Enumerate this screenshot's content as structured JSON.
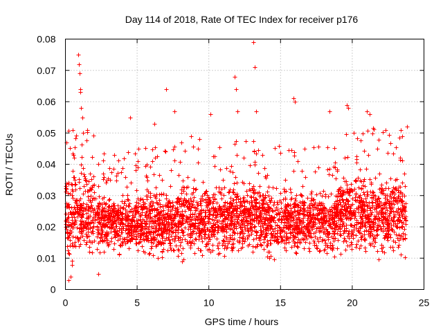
{
  "chart_data": {
    "type": "scatter",
    "title": "Day 114 of 2018, Rate Of TEC Index for receiver p176",
    "xlabel": "GPS time / hours",
    "ylabel": "ROTI / TECUs",
    "xlim": [
      0,
      25
    ],
    "ylim": [
      0,
      0.08
    ],
    "xticks": [
      0,
      5,
      10,
      15,
      20,
      25
    ],
    "xtick_labels": [
      "0",
      "5",
      "10",
      "15",
      "20",
      "25"
    ],
    "yticks": [
      0,
      0.01,
      0.02,
      0.03,
      0.04,
      0.05,
      0.06,
      0.07,
      0.08
    ],
    "ytick_labels": [
      "0",
      "0.01",
      "0.02",
      "0.03",
      "0.04",
      "0.05",
      "0.06",
      "0.07",
      "0.08"
    ],
    "grid": true,
    "marker": "+",
    "marker_color": "#ff0000",
    "series": [
      {
        "name": "ROTI",
        "description_points": "dense cloud, mostly 0.005-0.040 TECU/s across 0-23.7 h; highlighted outliers listed",
        "x": [
          0.05,
          0.2,
          0.35,
          0.6,
          0.9,
          0.95,
          1.0,
          1.02,
          1.05,
          1.1,
          1.2,
          1.5,
          2.3,
          4.5,
          6.2,
          7.0,
          7.6,
          10.1,
          11.8,
          11.9,
          12.0,
          13.1,
          13.2,
          13.3,
          15.9,
          16.0,
          18.4,
          19.6,
          19.7,
          21.0,
          21.2,
          22.3,
          23.4,
          23.8
        ],
        "y": [
          0.047,
          0.003,
          0.004,
          0.042,
          0.075,
          0.072,
          0.069,
          0.064,
          0.063,
          0.058,
          0.055,
          0.051,
          0.005,
          0.055,
          0.053,
          0.064,
          0.057,
          0.056,
          0.068,
          0.064,
          0.057,
          0.079,
          0.071,
          0.057,
          0.061,
          0.06,
          0.057,
          0.059,
          0.058,
          0.057,
          0.056,
          0.051,
          0.051,
          0.052
        ]
      }
    ]
  }
}
